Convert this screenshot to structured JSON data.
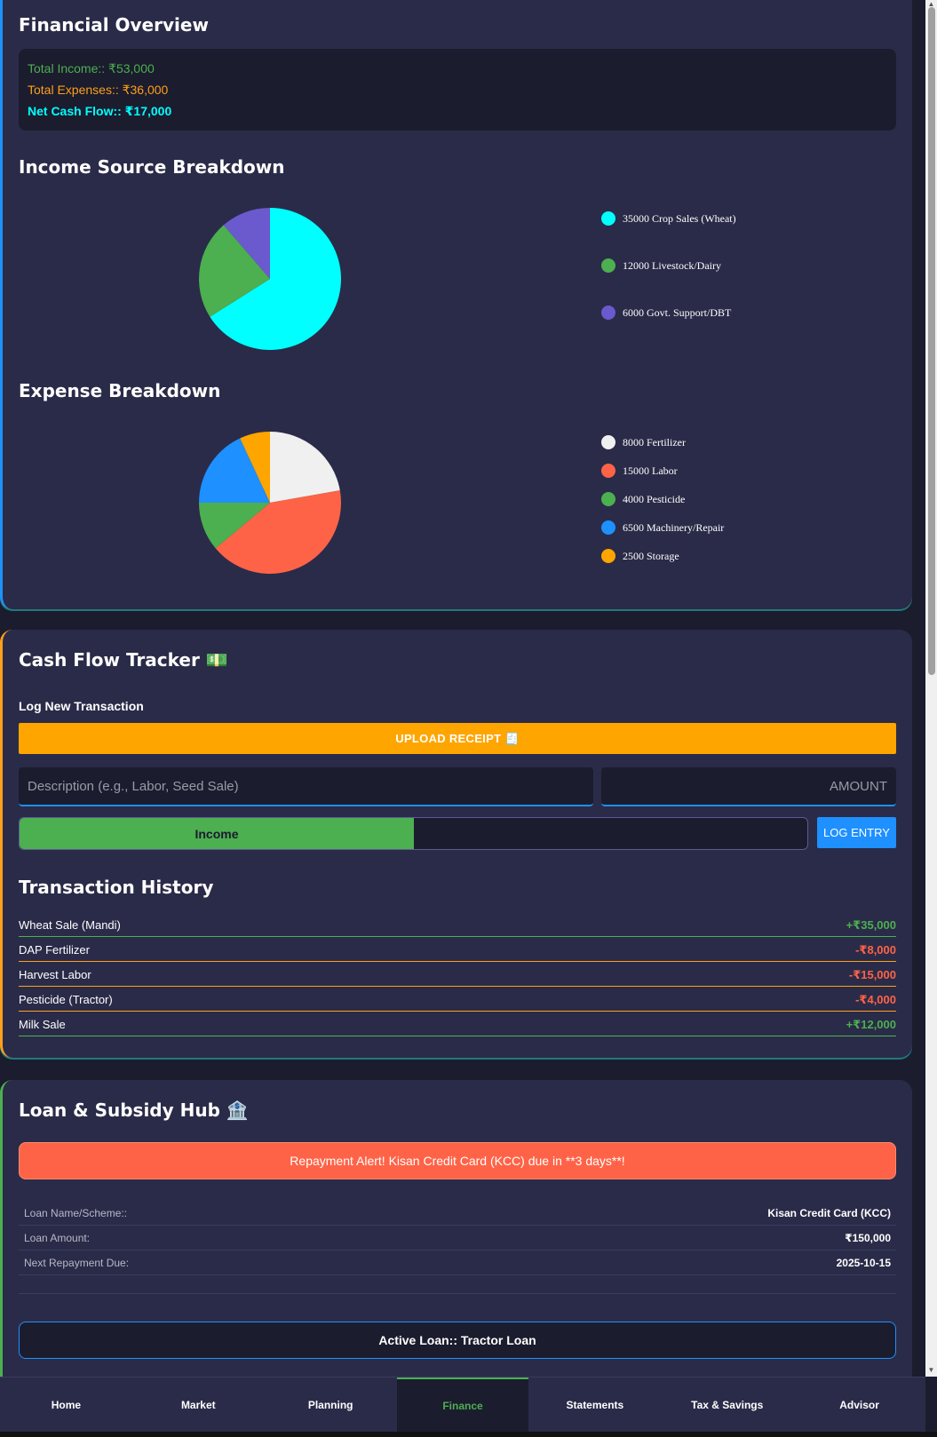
{
  "overview": {
    "title": "Financial Overview",
    "total_income": "Total Income:: ₹53,000",
    "total_expenses": "Total Expenses:: ₹36,000",
    "net_cash_flow": "Net Cash Flow:: ₹17,000"
  },
  "income_breakdown": {
    "title": "Income Source Breakdown",
    "legend": [
      {
        "label": "35000 Crop Sales (Wheat)",
        "color": "#00ffff"
      },
      {
        "label": "12000 Livestock/Dairy",
        "color": "#4caf50"
      },
      {
        "label": "6000 Govt. Support/DBT",
        "color": "#6a5acd"
      }
    ]
  },
  "expense_breakdown": {
    "title": "Expense Breakdown",
    "legend": [
      {
        "label": "8000 Fertilizer",
        "color": "#f0f0f0"
      },
      {
        "label": "15000 Labor",
        "color": "#ff6347"
      },
      {
        "label": "4000 Pesticide",
        "color": "#4caf50"
      },
      {
        "label": "6500 Machinery/Repair",
        "color": "#1e90ff"
      },
      {
        "label": "2500 Storage",
        "color": "#ffa500"
      }
    ]
  },
  "chart_data": [
    {
      "type": "pie",
      "categories": [
        "Crop Sales (Wheat)",
        "Livestock/Dairy",
        "Govt. Support/DBT"
      ],
      "values": [
        35000,
        12000,
        6000
      ],
      "colors": [
        "#00ffff",
        "#4caf50",
        "#6a5acd"
      ]
    },
    {
      "type": "pie",
      "categories": [
        "Fertilizer",
        "Labor",
        "Pesticide",
        "Machinery/Repair",
        "Storage"
      ],
      "values": [
        8000,
        15000,
        4000,
        6500,
        2500
      ],
      "colors": [
        "#f0f0f0",
        "#ff6347",
        "#4caf50",
        "#1e90ff",
        "#ffa500"
      ]
    }
  ],
  "cash_flow": {
    "title": "Cash Flow Tracker",
    "title_icon": "💵",
    "log_title": "Log New Transaction",
    "upload_label": "UPLOAD RECEIPT 🧾",
    "description_placeholder": "Description (e.g., Labor, Seed Sale)",
    "amount_placeholder": "AMOUNT",
    "type_selected": "Income",
    "log_button": "LOG ENTRY",
    "history_title": "Transaction History",
    "transactions": [
      {
        "desc": "Wheat Sale (Mandi)",
        "amount": "+₹35,000",
        "kind": "income"
      },
      {
        "desc": "DAP Fertilizer",
        "amount": "-₹8,000",
        "kind": "expense"
      },
      {
        "desc": "Harvest Labor",
        "amount": "-₹15,000",
        "kind": "expense"
      },
      {
        "desc": "Pesticide (Tractor)",
        "amount": "-₹4,000",
        "kind": "expense"
      },
      {
        "desc": "Milk Sale",
        "amount": "+₹12,000",
        "kind": "income"
      }
    ]
  },
  "loan": {
    "title": "Loan & Subsidy Hub",
    "title_icon": "🏦",
    "alert": "Repayment Alert! Kisan Credit Card (KCC) due in **3 days**!",
    "rows": [
      {
        "label": "Loan Name/Scheme::",
        "value": "Kisan Credit Card (KCC)"
      },
      {
        "label": "Loan Amount:",
        "value": "₹150,000"
      },
      {
        "label": "Next Repayment Due:",
        "value": "2025-10-15"
      }
    ],
    "active_loan": "Active Loan:: Tractor Loan"
  },
  "nav": {
    "items": [
      "Home",
      "Market",
      "Planning",
      "Finance",
      "Statements",
      "Tax & Savings",
      "Advisor"
    ],
    "active": "Finance"
  }
}
